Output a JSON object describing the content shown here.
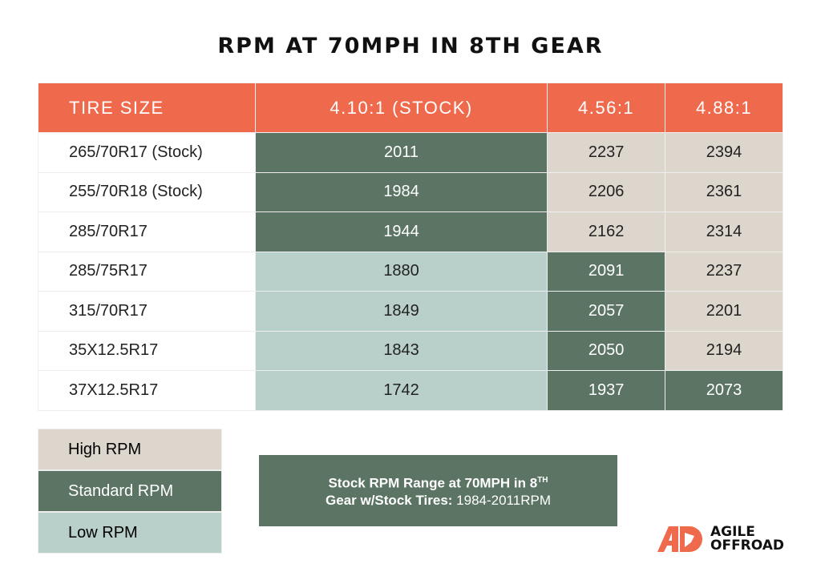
{
  "title": "RPM AT 70MPH IN 8TH GEAR",
  "table": {
    "headers": [
      "TIRE SIZE",
      "4.10:1 (STOCK)",
      "4.56:1",
      "4.88:1"
    ],
    "rows": [
      {
        "tire": "265/70R17 (Stock)",
        "values": [
          "2011",
          "2237",
          "2394"
        ],
        "levels": [
          "std",
          "high",
          "high"
        ]
      },
      {
        "tire": "255/70R18 (Stock)",
        "values": [
          "1984",
          "2206",
          "2361"
        ],
        "levels": [
          "std",
          "high",
          "high"
        ]
      },
      {
        "tire": "285/70R17",
        "values": [
          "1944",
          "2162",
          "2314"
        ],
        "levels": [
          "std",
          "high",
          "high"
        ]
      },
      {
        "tire": "285/75R17",
        "values": [
          "1880",
          "2091",
          "2237"
        ],
        "levels": [
          "low",
          "std",
          "high"
        ]
      },
      {
        "tire": "315/70R17",
        "values": [
          "1849",
          "2057",
          "2201"
        ],
        "levels": [
          "low",
          "std",
          "high"
        ]
      },
      {
        "tire": "35X12.5R17",
        "values": [
          "1843",
          "2050",
          "2194"
        ],
        "levels": [
          "low",
          "std",
          "high"
        ]
      },
      {
        "tire": "37X12.5R17",
        "values": [
          "1742",
          "1937",
          "2073"
        ],
        "levels": [
          "low",
          "std",
          "std"
        ]
      }
    ]
  },
  "legend": [
    {
      "label": "High RPM",
      "color": "#ddd6cc"
    },
    {
      "label": "Standard RPM",
      "color": "#5b7464"
    },
    {
      "label": "Low RPM",
      "color": "#b8d0c9"
    }
  ],
  "info": {
    "line1": "Stock RPM Range at 70MPH in 8",
    "sup": "TH",
    "line2_bold": "Gear w/Stock Tires:",
    "line2_value": " 1984-2011RPM"
  },
  "logo": {
    "line1": "AGILE",
    "line2": "OFFROAD",
    "color": "#ef6a4c"
  }
}
